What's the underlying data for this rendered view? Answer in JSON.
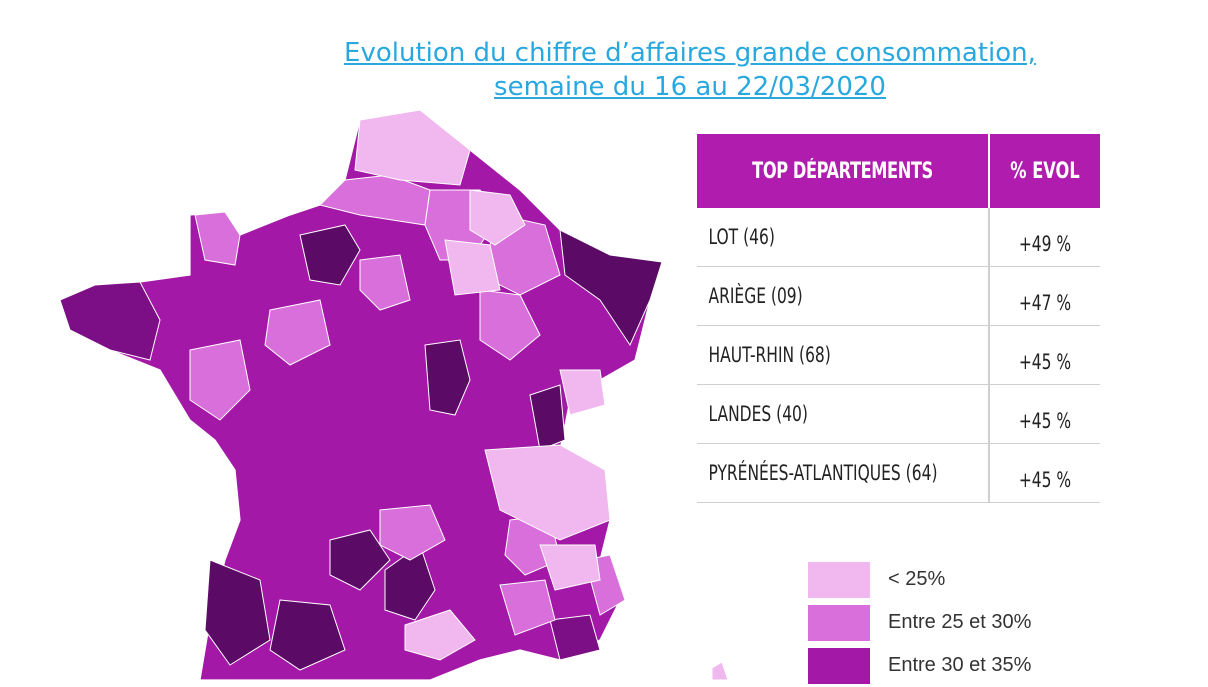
{
  "title": {
    "line1": "Evolution du chiffre d’affaires grande consommation,",
    "line2": "semaine du 16 au 22/03/2020"
  },
  "table": {
    "header_dept": "TOP DÉPARTEMENTS",
    "header_evol": "% EVOL",
    "rows": [
      {
        "dept": "LOT (46)",
        "evol": "+49 %"
      },
      {
        "dept": "ARIÈGE (09)",
        "evol": "+47 %"
      },
      {
        "dept": "HAUT-RHIN (68)",
        "evol": "+45 %"
      },
      {
        "dept": "LANDES (40)",
        "evol": "+45 %"
      },
      {
        "dept": "PYRÉNÉES-ATLANTIQUES (64)",
        "evol": "+45 %"
      }
    ],
    "header_color": "#b01cad"
  },
  "legend": [
    {
      "label": "< 25%",
      "color": "#f0b8ee"
    },
    {
      "label": "Entre 25 et 30%",
      "color": "#d86fdb"
    },
    {
      "label": "Entre 30 et 35%",
      "color": "#a318a6"
    }
  ],
  "map_colors": {
    "light": "#f0b8ee",
    "medium": "#d86fdb",
    "strong": "#a318a6",
    "darker": "#7d0f86",
    "darkest": "#5b0a66"
  }
}
